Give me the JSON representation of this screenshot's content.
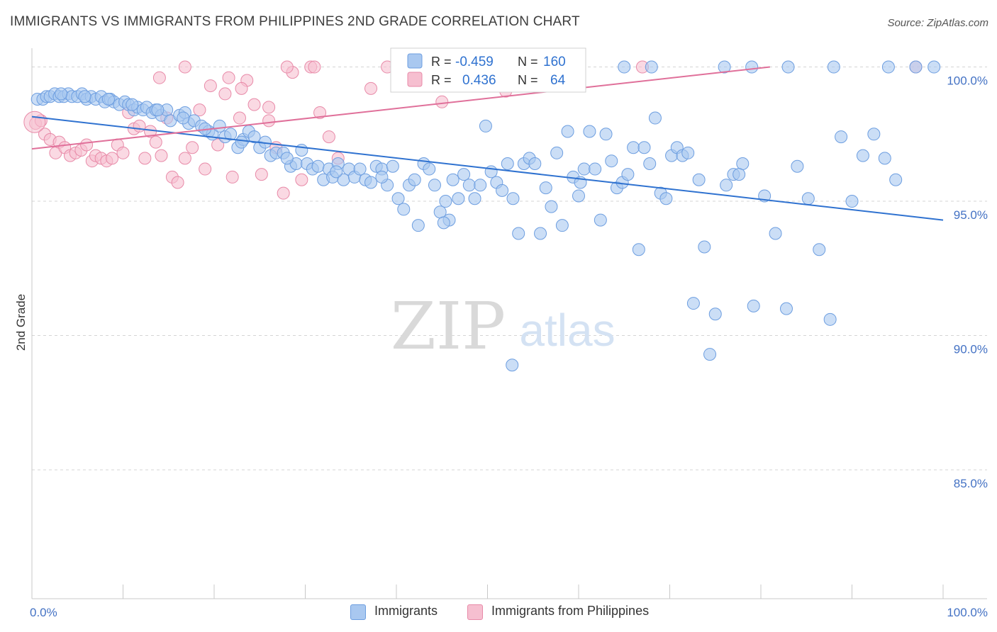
{
  "title": "IMMIGRANTS VS IMMIGRANTS FROM PHILIPPINES 2ND GRADE CORRELATION CHART",
  "source": "Source: ZipAtlas.com",
  "watermark": {
    "zip": "ZIP",
    "atlas": "atlas"
  },
  "legend_box": {
    "rows": [
      {
        "r_label": "R =",
        "r_value": "-0.459",
        "n_label": "N =",
        "n_value": "160"
      },
      {
        "r_label": "R =",
        "r_value": "0.436",
        "n_label": "N =",
        "n_value": "64"
      }
    ]
  },
  "legend_bottom": {
    "series1": "Immigrants",
    "series2": "Immigrants from Philippines"
  },
  "colors": {
    "blue_fill": "#a9c8f0",
    "blue_stroke": "#6d9ee0",
    "blue_line": "#2f72d0",
    "pink_fill": "#f6bfd0",
    "pink_stroke": "#e88aa8",
    "pink_line": "#e0709a",
    "tick_text": "#4472c4",
    "grid": "#d5d5d5"
  },
  "chart_data": {
    "type": "scatter",
    "title": "IMMIGRANTS VS IMMIGRANTS FROM PHILIPPINES 2ND GRADE CORRELATION CHART",
    "xlabel": "",
    "ylabel": "2nd Grade",
    "xlim": [
      0,
      100
    ],
    "ylim": [
      80.2,
      100.7
    ],
    "x_tick_labels": [
      "0.0%",
      "100.0%"
    ],
    "y_ticks": [
      85,
      90,
      95,
      100
    ],
    "y_tick_labels": [
      "85.0%",
      "90.0%",
      "95.0%",
      "100.0%"
    ],
    "grid": "horizontal dashed",
    "legend_position": "top-center",
    "series": [
      {
        "name": "Immigrants",
        "r": -0.459,
        "n": 160,
        "trend": [
          [
            0,
            98.15
          ],
          [
            100,
            94.3
          ]
        ],
        "points": [
          [
            0.6,
            98.8
          ],
          [
            1.2,
            98.8
          ],
          [
            1.6,
            98.9
          ],
          [
            2.0,
            98.9
          ],
          [
            2.5,
            99.0
          ],
          [
            3.0,
            98.9
          ],
          [
            3.5,
            98.9
          ],
          [
            4.0,
            99.0
          ],
          [
            4.4,
            98.9
          ],
          [
            5.0,
            98.9
          ],
          [
            5.5,
            99.0
          ],
          [
            6.0,
            98.8
          ],
          [
            6.5,
            98.9
          ],
          [
            7.0,
            98.8
          ],
          [
            7.6,
            98.9
          ],
          [
            8.0,
            98.7
          ],
          [
            8.6,
            98.8
          ],
          [
            9.0,
            98.7
          ],
          [
            9.6,
            98.6
          ],
          [
            10.2,
            98.7
          ],
          [
            10.6,
            98.6
          ],
          [
            11.2,
            98.4
          ],
          [
            11.6,
            98.5
          ],
          [
            12.2,
            98.4
          ],
          [
            12.6,
            98.5
          ],
          [
            13.2,
            98.3
          ],
          [
            13.6,
            98.4
          ],
          [
            14.2,
            98.2
          ],
          [
            14.8,
            98.4
          ],
          [
            15.2,
            98.0
          ],
          [
            16.2,
            98.2
          ],
          [
            16.8,
            98.3
          ],
          [
            17.2,
            97.9
          ],
          [
            17.8,
            98.0
          ],
          [
            18.6,
            97.8
          ],
          [
            19.4,
            97.6
          ],
          [
            19.8,
            97.5
          ],
          [
            20.6,
            97.8
          ],
          [
            21.2,
            97.4
          ],
          [
            21.8,
            97.5
          ],
          [
            22.6,
            97.0
          ],
          [
            23.2,
            97.3
          ],
          [
            23.8,
            97.6
          ],
          [
            24.4,
            97.4
          ],
          [
            25.0,
            97.0
          ],
          [
            25.6,
            97.2
          ],
          [
            26.2,
            96.7
          ],
          [
            26.8,
            96.8
          ],
          [
            27.6,
            96.8
          ],
          [
            28.4,
            96.3
          ],
          [
            29.0,
            96.4
          ],
          [
            29.6,
            96.9
          ],
          [
            30.2,
            96.4
          ],
          [
            30.8,
            96.2
          ],
          [
            31.4,
            96.3
          ],
          [
            32.0,
            95.8
          ],
          [
            32.6,
            96.2
          ],
          [
            33.0,
            95.9
          ],
          [
            33.6,
            96.4
          ],
          [
            34.2,
            95.8
          ],
          [
            34.8,
            96.2
          ],
          [
            35.4,
            95.9
          ],
          [
            36.0,
            96.2
          ],
          [
            36.6,
            95.8
          ],
          [
            37.2,
            95.7
          ],
          [
            37.8,
            96.3
          ],
          [
            38.4,
            96.2
          ],
          [
            39.0,
            95.6
          ],
          [
            39.6,
            96.3
          ],
          [
            40.2,
            95.1
          ],
          [
            40.8,
            94.7
          ],
          [
            41.4,
            95.6
          ],
          [
            42.0,
            95.8
          ],
          [
            42.4,
            94.1
          ],
          [
            43.0,
            96.4
          ],
          [
            43.6,
            96.2
          ],
          [
            44.2,
            95.6
          ],
          [
            44.8,
            94.6
          ],
          [
            45.4,
            95.0
          ],
          [
            45.8,
            94.3
          ],
          [
            46.2,
            95.8
          ],
          [
            46.8,
            95.1
          ],
          [
            47.4,
            96.0
          ],
          [
            48.0,
            95.6
          ],
          [
            48.6,
            95.1
          ],
          [
            49.2,
            95.6
          ],
          [
            49.8,
            97.8
          ],
          [
            50.4,
            96.1
          ],
          [
            51.0,
            95.7
          ],
          [
            51.6,
            95.4
          ],
          [
            52.2,
            96.4
          ],
          [
            52.8,
            95.1
          ],
          [
            53.4,
            93.8
          ],
          [
            54.0,
            96.4
          ],
          [
            54.6,
            96.6
          ],
          [
            55.2,
            96.4
          ],
          [
            55.8,
            93.8
          ],
          [
            56.4,
            95.5
          ],
          [
            57.0,
            94.8
          ],
          [
            57.6,
            96.8
          ],
          [
            58.2,
            94.1
          ],
          [
            58.8,
            97.6
          ],
          [
            59.4,
            95.9
          ],
          [
            60.0,
            95.2
          ],
          [
            60.6,
            96.2
          ],
          [
            61.2,
            97.6
          ],
          [
            61.8,
            96.2
          ],
          [
            62.4,
            94.3
          ],
          [
            63.0,
            97.5
          ],
          [
            63.6,
            96.5
          ],
          [
            64.2,
            95.5
          ],
          [
            64.8,
            95.7
          ],
          [
            65.4,
            96.0
          ],
          [
            66.0,
            97.0
          ],
          [
            66.6,
            93.2
          ],
          [
            67.2,
            97.0
          ],
          [
            67.8,
            96.4
          ],
          [
            68.4,
            98.1
          ],
          [
            69.0,
            95.3
          ],
          [
            69.6,
            95.1
          ],
          [
            70.2,
            96.7
          ],
          [
            70.8,
            97.0
          ],
          [
            71.4,
            96.7
          ],
          [
            72.0,
            96.8
          ],
          [
            72.6,
            91.2
          ],
          [
            73.2,
            95.8
          ],
          [
            73.8,
            93.3
          ],
          [
            74.4,
            89.3
          ],
          [
            75.0,
            90.8
          ],
          [
            76.2,
            95.6
          ],
          [
            77.0,
            96.0
          ],
          [
            78.0,
            96.4
          ],
          [
            79.2,
            91.1
          ],
          [
            80.4,
            95.2
          ],
          [
            81.6,
            93.8
          ],
          [
            82.8,
            91.0
          ],
          [
            84.0,
            96.3
          ],
          [
            85.2,
            95.1
          ],
          [
            86.4,
            93.2
          ],
          [
            87.6,
            90.6
          ],
          [
            88.8,
            97.4
          ],
          [
            90.0,
            95.0
          ],
          [
            91.2,
            96.7
          ],
          [
            92.4,
            97.5
          ],
          [
            93.6,
            96.6
          ],
          [
            94.8,
            95.8
          ],
          [
            52.7,
            88.9
          ],
          [
            60.2,
            95.7
          ],
          [
            45.2,
            94.2
          ],
          [
            38.4,
            95.9
          ],
          [
            33.4,
            96.1
          ],
          [
            28.0,
            96.6
          ],
          [
            23.0,
            97.2
          ],
          [
            19.0,
            97.7
          ],
          [
            16.6,
            98.1
          ],
          [
            13.8,
            98.4
          ],
          [
            11.0,
            98.6
          ],
          [
            8.4,
            98.8
          ],
          [
            5.8,
            98.9
          ],
          [
            3.2,
            99.0
          ],
          [
            65.0,
            100.0
          ],
          [
            68.0,
            100.0
          ],
          [
            76.0,
            100.0
          ],
          [
            79.0,
            100.0
          ],
          [
            83.0,
            100.0
          ],
          [
            88.0,
            100.0
          ],
          [
            94.0,
            100.0
          ],
          [
            97.0,
            100.0
          ],
          [
            99.0,
            100.0
          ],
          [
            77.6,
            96.0
          ]
        ]
      },
      {
        "name": "Immigrants from Philippines",
        "r": 0.436,
        "n": 64,
        "trend": [
          [
            0,
            96.95
          ],
          [
            81.0,
            100.0
          ]
        ],
        "points": [
          [
            0.4,
            97.9
          ],
          [
            1.0,
            98.0
          ],
          [
            1.4,
            97.5
          ],
          [
            2.0,
            97.3
          ],
          [
            2.6,
            96.8
          ],
          [
            3.0,
            97.2
          ],
          [
            3.6,
            97.0
          ],
          [
            4.2,
            96.7
          ],
          [
            4.8,
            96.8
          ],
          [
            5.4,
            96.9
          ],
          [
            6.0,
            97.1
          ],
          [
            6.6,
            96.5
          ],
          [
            7.0,
            96.7
          ],
          [
            7.6,
            96.6
          ],
          [
            8.2,
            96.5
          ],
          [
            8.8,
            96.6
          ],
          [
            9.4,
            97.1
          ],
          [
            10.0,
            96.8
          ],
          [
            10.6,
            98.3
          ],
          [
            11.2,
            97.7
          ],
          [
            11.8,
            97.8
          ],
          [
            12.4,
            96.6
          ],
          [
            13.0,
            97.6
          ],
          [
            13.6,
            97.2
          ],
          [
            14.2,
            96.7
          ],
          [
            14.8,
            98.1
          ],
          [
            15.4,
            95.9
          ],
          [
            16.0,
            95.7
          ],
          [
            16.8,
            96.6
          ],
          [
            17.6,
            97.0
          ],
          [
            18.4,
            98.4
          ],
          [
            19.0,
            96.2
          ],
          [
            19.6,
            99.3
          ],
          [
            20.4,
            97.1
          ],
          [
            21.2,
            99.0
          ],
          [
            22.0,
            95.9
          ],
          [
            22.8,
            98.1
          ],
          [
            23.6,
            99.5
          ],
          [
            24.4,
            98.6
          ],
          [
            25.2,
            96.0
          ],
          [
            26.0,
            98.0
          ],
          [
            26.8,
            97.0
          ],
          [
            27.6,
            95.3
          ],
          [
            28.6,
            99.8
          ],
          [
            29.6,
            95.8
          ],
          [
            30.6,
            100.0
          ],
          [
            31.6,
            98.3
          ],
          [
            32.6,
            97.4
          ],
          [
            33.6,
            96.6
          ],
          [
            37.2,
            99.2
          ],
          [
            14.0,
            99.6
          ],
          [
            16.8,
            100.0
          ],
          [
            21.6,
            99.6
          ],
          [
            23.0,
            99.2
          ],
          [
            26.0,
            98.5
          ],
          [
            28.0,
            100.0
          ],
          [
            31.0,
            100.0
          ],
          [
            39.0,
            100.0
          ],
          [
            45.0,
            98.7
          ],
          [
            50.0,
            100.0
          ],
          [
            52.0,
            99.1
          ],
          [
            55.0,
            100.0
          ],
          [
            67.0,
            100.0
          ],
          [
            97.0,
            100.0
          ]
        ]
      }
    ]
  }
}
